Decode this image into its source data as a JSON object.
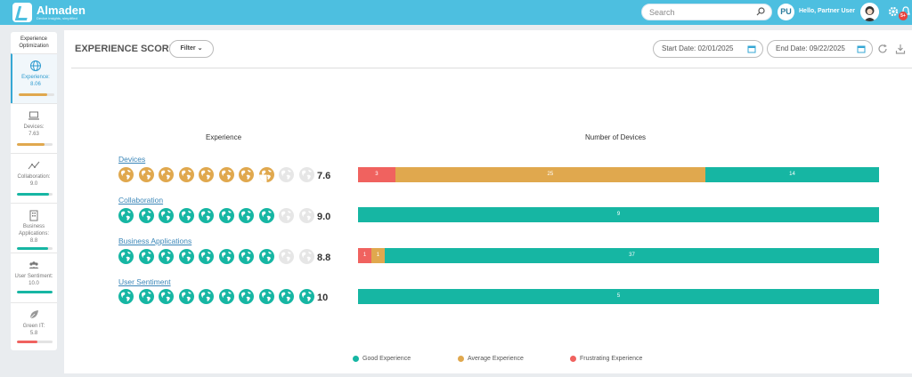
{
  "app": {
    "name": "Almaden",
    "tagline": "Device insights, simplified",
    "search_placeholder": "Search",
    "user_initials": "PU",
    "greeting": "Hello, Partner User",
    "notification_count": "5+"
  },
  "sidebar": {
    "header": "Experience Optimization",
    "items": [
      {
        "label": "Experience:",
        "value": "8.06",
        "icon": "globe-icon",
        "fill": 0.806,
        "color": "#e0a84e"
      },
      {
        "label": "Devices:",
        "value": "7.63",
        "icon": "laptop-icon",
        "fill": 0.763,
        "color": "#e0a84e"
      },
      {
        "label": "Collaboration:",
        "value": "9.0",
        "icon": "collaboration-icon",
        "fill": 0.9,
        "color": "#16b6a3"
      },
      {
        "label": "Business Applications:",
        "value": "8.8",
        "icon": "building-icon",
        "fill": 0.88,
        "color": "#16b6a3"
      },
      {
        "label": "User Sentiment:",
        "value": "10.0",
        "icon": "users-icon",
        "fill": 1.0,
        "color": "#16b6a3"
      },
      {
        "label": "Green IT:",
        "value": "5.8",
        "icon": "leaf-icon",
        "fill": 0.58,
        "color": "#f0625f"
      }
    ]
  },
  "header": {
    "title": "EXPERIENCE SCORE",
    "filter_label": "Filter",
    "start_date": "Start Date: 02/01/2025",
    "end_date": "End Date: 09/22/2025"
  },
  "table": {
    "col_experience": "Experience",
    "col_devices": "Number of Devices"
  },
  "chart_data": {
    "type": "bar",
    "orientation": "horizontal",
    "stacked": true,
    "categories": [
      "Devices",
      "Collaboration",
      "Business Applications",
      "User Sentiment"
    ],
    "scores": [
      "7.6",
      "9.0",
      "8.8",
      "10"
    ],
    "score_values": [
      7.6,
      9.0,
      8.8,
      10
    ],
    "globe_filled": [
      7,
      8,
      8,
      10
    ],
    "globe_partial": [
      1,
      0,
      0,
      0
    ],
    "globe_color": [
      "#e0a84e",
      "#16b6a3",
      "#16b6a3",
      "#16b6a3"
    ],
    "series": [
      {
        "name": "Frustrating Experience",
        "color": "#f0625f",
        "values": [
          3,
          0,
          1,
          0
        ]
      },
      {
        "name": "Average Experience",
        "color": "#e0a84e",
        "values": [
          25,
          0,
          1,
          0
        ]
      },
      {
        "name": "Good Experience",
        "color": "#16b6a3",
        "values": [
          14,
          9,
          37,
          5
        ]
      }
    ],
    "legend": {
      "position": "bottom",
      "items": [
        {
          "name": "Good Experience",
          "color": "#16b6a3"
        },
        {
          "name": "Average Experience",
          "color": "#e0a84e"
        },
        {
          "name": "Frustrating Experience",
          "color": "#f0625f"
        }
      ]
    }
  }
}
